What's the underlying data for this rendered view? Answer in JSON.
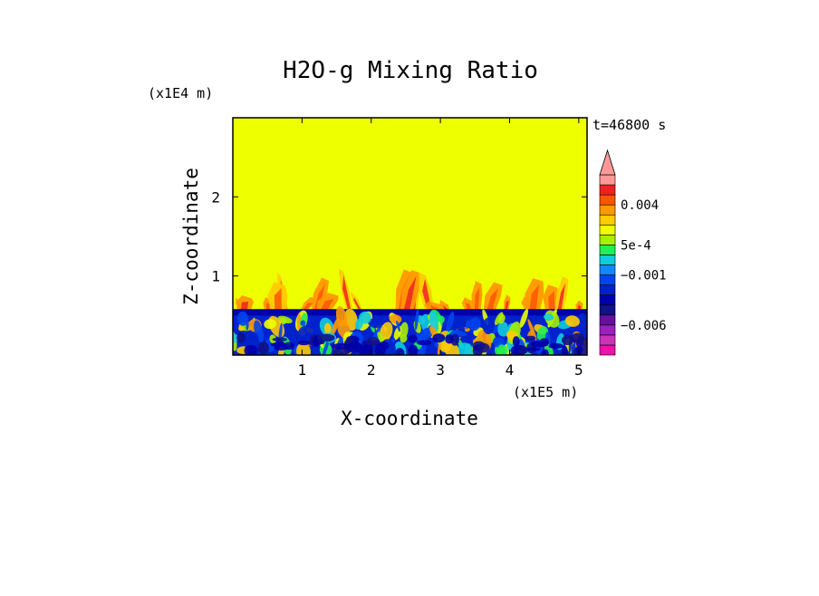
{
  "chart_data": {
    "type": "heatmap",
    "title": "H2O-g Mixing Ratio",
    "xlabel": "X-coordinate",
    "ylabel": "Z-coordinate",
    "x_scale_label": "(x1E5 m)",
    "y_scale_label": "(x1E4 m)",
    "time_label": "t=46800 s",
    "xlim": [
      0,
      5.12
    ],
    "ylim": [
      0,
      3.0
    ],
    "x_ticks": [
      1,
      2,
      3,
      4,
      5
    ],
    "x_tick_labels": [
      "1",
      "2",
      "3",
      "4",
      "5"
    ],
    "y_ticks": [
      1,
      2
    ],
    "y_tick_labels": [
      "1",
      "2"
    ],
    "colorbar": {
      "levels": [
        -0.009,
        -0.008,
        -0.007,
        -0.006,
        -0.005,
        -0.004,
        -0.003,
        -0.002,
        -0.001,
        -0.0005,
        0,
        0.0005,
        0.001,
        0.002,
        0.003,
        0.004,
        0.005,
        0.006
      ],
      "labels": [
        {
          "value": 0.004,
          "text": "0.004"
        },
        {
          "value": 0.0005,
          "text": "5e-4"
        },
        {
          "value": -0.001,
          "text": "−0.001"
        },
        {
          "value": -0.006,
          "text": "−0.006"
        }
      ],
      "colors": [
        "#ee11aa",
        "#cc33bb",
        "#9922bb",
        "#661199",
        "#111188",
        "#0000aa",
        "#0022cc",
        "#0044ee",
        "#1188ff",
        "#11ccdd",
        "#22ee55",
        "#aaee00",
        "#eeff00",
        "#ffcc00",
        "#ff9900",
        "#ff5500",
        "#ee2222",
        "#ff9999"
      ],
      "extend": "max"
    },
    "field_summary": {
      "background_color": "#eeff00",
      "boundary_layer_top_z": 0.58,
      "plume_max_z": 1.05
    }
  }
}
